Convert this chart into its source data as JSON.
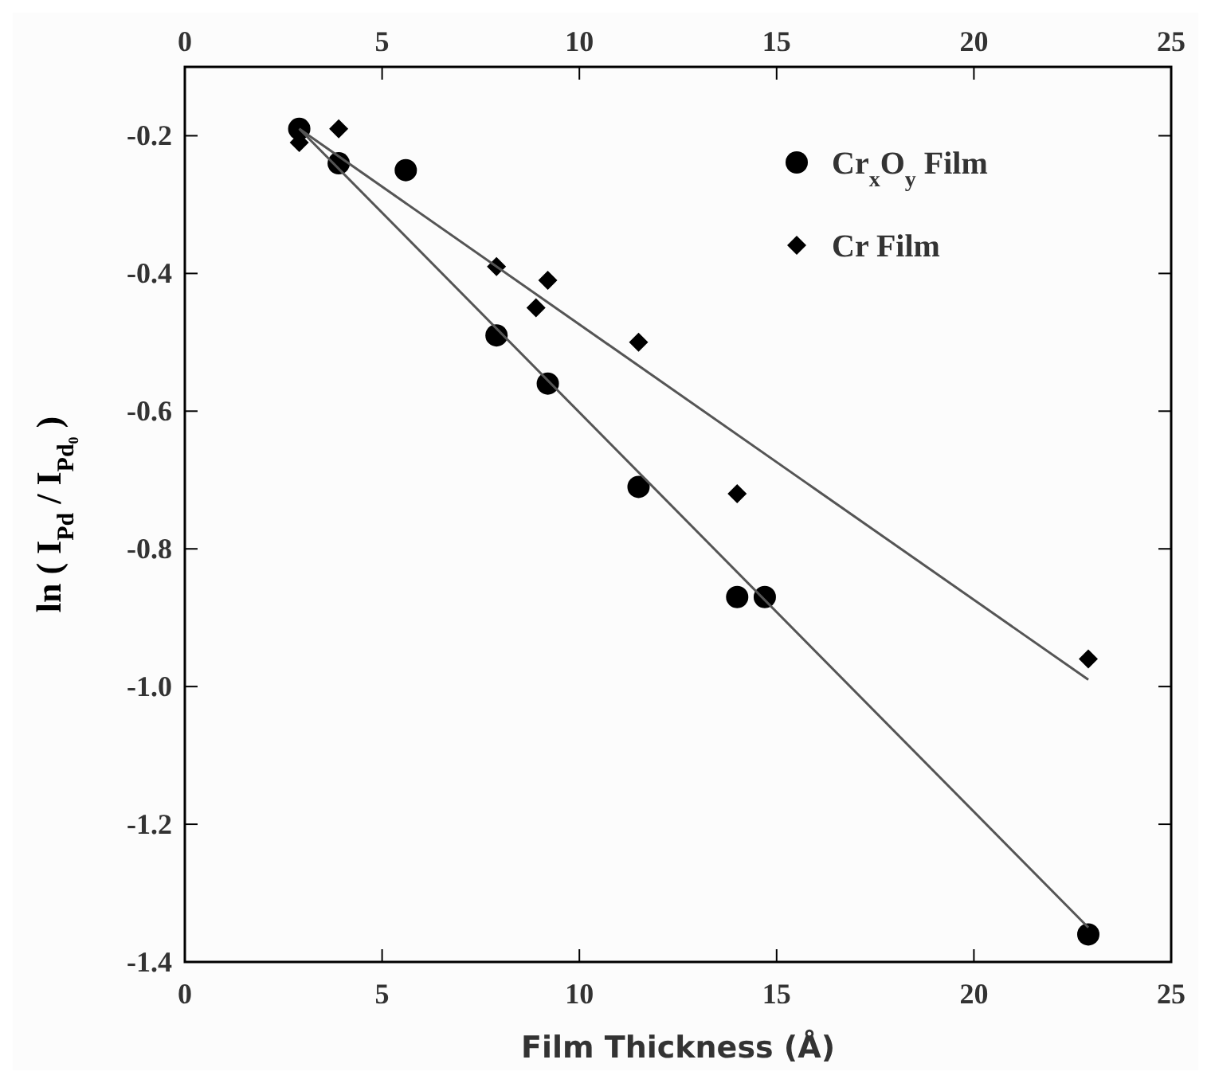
{
  "chart_data": {
    "type": "scatter",
    "xlabel": "Film Thickness (Å)",
    "ylabel": "ln ( I$_{Pd}$ / I$_{Pd₀}$ )",
    "xlim": [
      0,
      25
    ],
    "xticks": [
      0,
      5,
      10,
      15,
      20,
      25
    ],
    "x2lim": [
      0,
      25
    ],
    "x2ticks": [
      0,
      5,
      10,
      15,
      20,
      25
    ],
    "ylim": [
      -1.4,
      -0.1
    ],
    "yticks": [
      {
        "value": -1.4,
        "label": "-1.4"
      },
      {
        "value": -1.2,
        "label": "-1.2"
      },
      {
        "value": -1.0,
        "label": "-1.0"
      },
      {
        "value": -0.8,
        "label": "-0.8"
      },
      {
        "value": -0.6,
        "label": "-0.6"
      },
      {
        "value": -0.4,
        "label": "-0.4"
      },
      {
        "value": -0.2,
        "label": "-0.2"
      }
    ],
    "legend": "top right",
    "grid": false,
    "series": [
      {
        "name": "Cr$_{x}$O$_{y}$ Film",
        "color": "#000000",
        "marker": "circle",
        "x": [
          2.9,
          3.9,
          5.6,
          7.9,
          9.2,
          11.5,
          14,
          14.7,
          22.9
        ],
        "values": [
          -0.19,
          -0.24,
          -0.25,
          -0.49,
          -0.56,
          -0.71,
          -0.87,
          -0.87,
          -1.36
        ]
      },
      {
        "name": "Cr Film",
        "color": "#000000",
        "marker": "diamond",
        "x": [
          2.9,
          3.9,
          7.9,
          8.9,
          9.2,
          11.5,
          14,
          22.9
        ],
        "values": [
          -0.21,
          -0.19,
          -0.39,
          -0.45,
          -0.41,
          -0.5,
          -0.72,
          -0.96
        ]
      },
      {
        "type": "line",
        "color": "#555555",
        "marker": "none",
        "x": [
          2.9,
          22.9
        ],
        "values": [
          -0.19,
          -1.35
        ]
      },
      {
        "type": "line",
        "color": "#555555",
        "marker": "none",
        "x": [
          2.9,
          22.9
        ],
        "values": [
          -0.19,
          -0.99
        ]
      }
    ]
  }
}
